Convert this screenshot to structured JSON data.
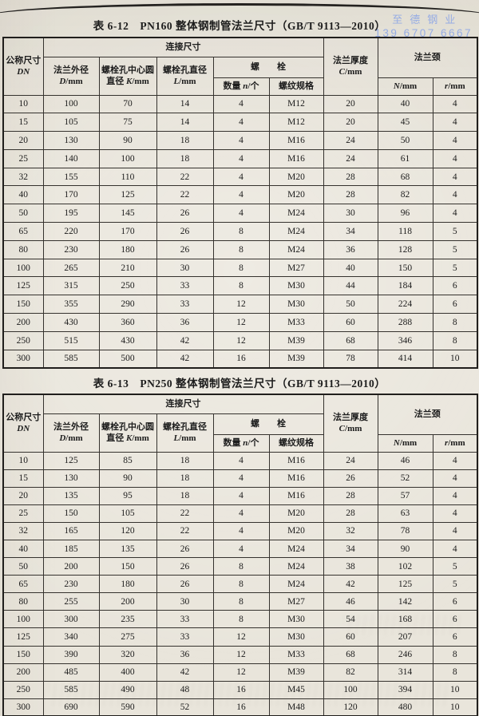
{
  "watermark": {
    "line1": "至德钢业",
    "line2": "139 6707 6667",
    "color": "#8ea7e6"
  },
  "header": {
    "dn_line1": "公称尺寸",
    "dn_line2": "DN",
    "connection": "连接尺寸",
    "d_name": "法兰外径",
    "d_var": "D",
    "d_unit": "/mm",
    "k_name": "螺栓孔中心圆",
    "k_pre": "直径 ",
    "k_var": "K",
    "k_unit": "/mm",
    "l_name": "螺栓孔直径",
    "l_var": "L",
    "l_unit": "/mm",
    "bolt": "螺　　栓",
    "count_pre": "数量 ",
    "count_var": "n",
    "count_unit": "/个",
    "thread": "螺纹规格",
    "c_name": "法兰厚度",
    "c_var": "C",
    "c_unit": "/mm",
    "neck": "法兰颈",
    "nn_var": "N",
    "nn_unit": "/mm",
    "r_var": "r",
    "r_unit": "/mm"
  },
  "tables": [
    {
      "label": "表 6-12",
      "title": "PN160 整体钢制管法兰尺寸（GB/T 9113—2010）",
      "rows": [
        [
          10,
          100,
          70,
          14,
          4,
          "M12",
          20,
          40,
          4
        ],
        [
          15,
          105,
          75,
          14,
          4,
          "M12",
          20,
          45,
          4
        ],
        [
          20,
          130,
          90,
          18,
          4,
          "M16",
          24,
          50,
          4
        ],
        [
          25,
          140,
          100,
          18,
          4,
          "M16",
          24,
          61,
          4
        ],
        [
          32,
          155,
          110,
          22,
          4,
          "M20",
          28,
          68,
          4
        ],
        [
          40,
          170,
          125,
          22,
          4,
          "M20",
          28,
          82,
          4
        ],
        [
          50,
          195,
          145,
          26,
          4,
          "M24",
          30,
          96,
          4
        ],
        [
          65,
          220,
          170,
          26,
          8,
          "M24",
          34,
          118,
          5
        ],
        [
          80,
          230,
          180,
          26,
          8,
          "M24",
          36,
          128,
          5
        ],
        [
          100,
          265,
          210,
          30,
          8,
          "M27",
          40,
          150,
          5
        ],
        [
          125,
          315,
          250,
          33,
          8,
          "M30",
          44,
          184,
          6
        ],
        [
          150,
          355,
          290,
          33,
          12,
          "M30",
          50,
          224,
          6
        ],
        [
          200,
          430,
          360,
          36,
          12,
          "M33",
          60,
          288,
          8
        ],
        [
          250,
          515,
          430,
          42,
          12,
          "M39",
          68,
          346,
          8
        ],
        [
          300,
          585,
          500,
          42,
          16,
          "M39",
          78,
          414,
          10
        ]
      ]
    },
    {
      "label": "表 6-13",
      "title": "PN250 整体钢制管法兰尺寸（GB/T 9113—2010）",
      "rows": [
        [
          10,
          125,
          85,
          18,
          4,
          "M16",
          24,
          46,
          4
        ],
        [
          15,
          130,
          90,
          18,
          4,
          "M16",
          26,
          52,
          4
        ],
        [
          20,
          135,
          95,
          18,
          4,
          "M16",
          28,
          57,
          4
        ],
        [
          25,
          150,
          105,
          22,
          4,
          "M20",
          28,
          63,
          4
        ],
        [
          32,
          165,
          120,
          22,
          4,
          "M20",
          32,
          78,
          4
        ],
        [
          40,
          185,
          135,
          26,
          4,
          "M24",
          34,
          90,
          4
        ],
        [
          50,
          200,
          150,
          26,
          8,
          "M24",
          38,
          102,
          5
        ],
        [
          65,
          230,
          180,
          26,
          8,
          "M24",
          42,
          125,
          5
        ],
        [
          80,
          255,
          200,
          30,
          8,
          "M27",
          46,
          142,
          6
        ],
        [
          100,
          300,
          235,
          33,
          8,
          "M30",
          54,
          168,
          6
        ],
        [
          125,
          340,
          275,
          33,
          12,
          "M30",
          60,
          207,
          6
        ],
        [
          150,
          390,
          320,
          36,
          12,
          "M33",
          68,
          246,
          8
        ],
        [
          200,
          485,
          400,
          42,
          12,
          "M39",
          82,
          314,
          8
        ],
        [
          250,
          585,
          490,
          48,
          16,
          "M45",
          100,
          394,
          10
        ],
        [
          300,
          690,
          590,
          52,
          16,
          "M48",
          120,
          480,
          10
        ]
      ]
    }
  ]
}
